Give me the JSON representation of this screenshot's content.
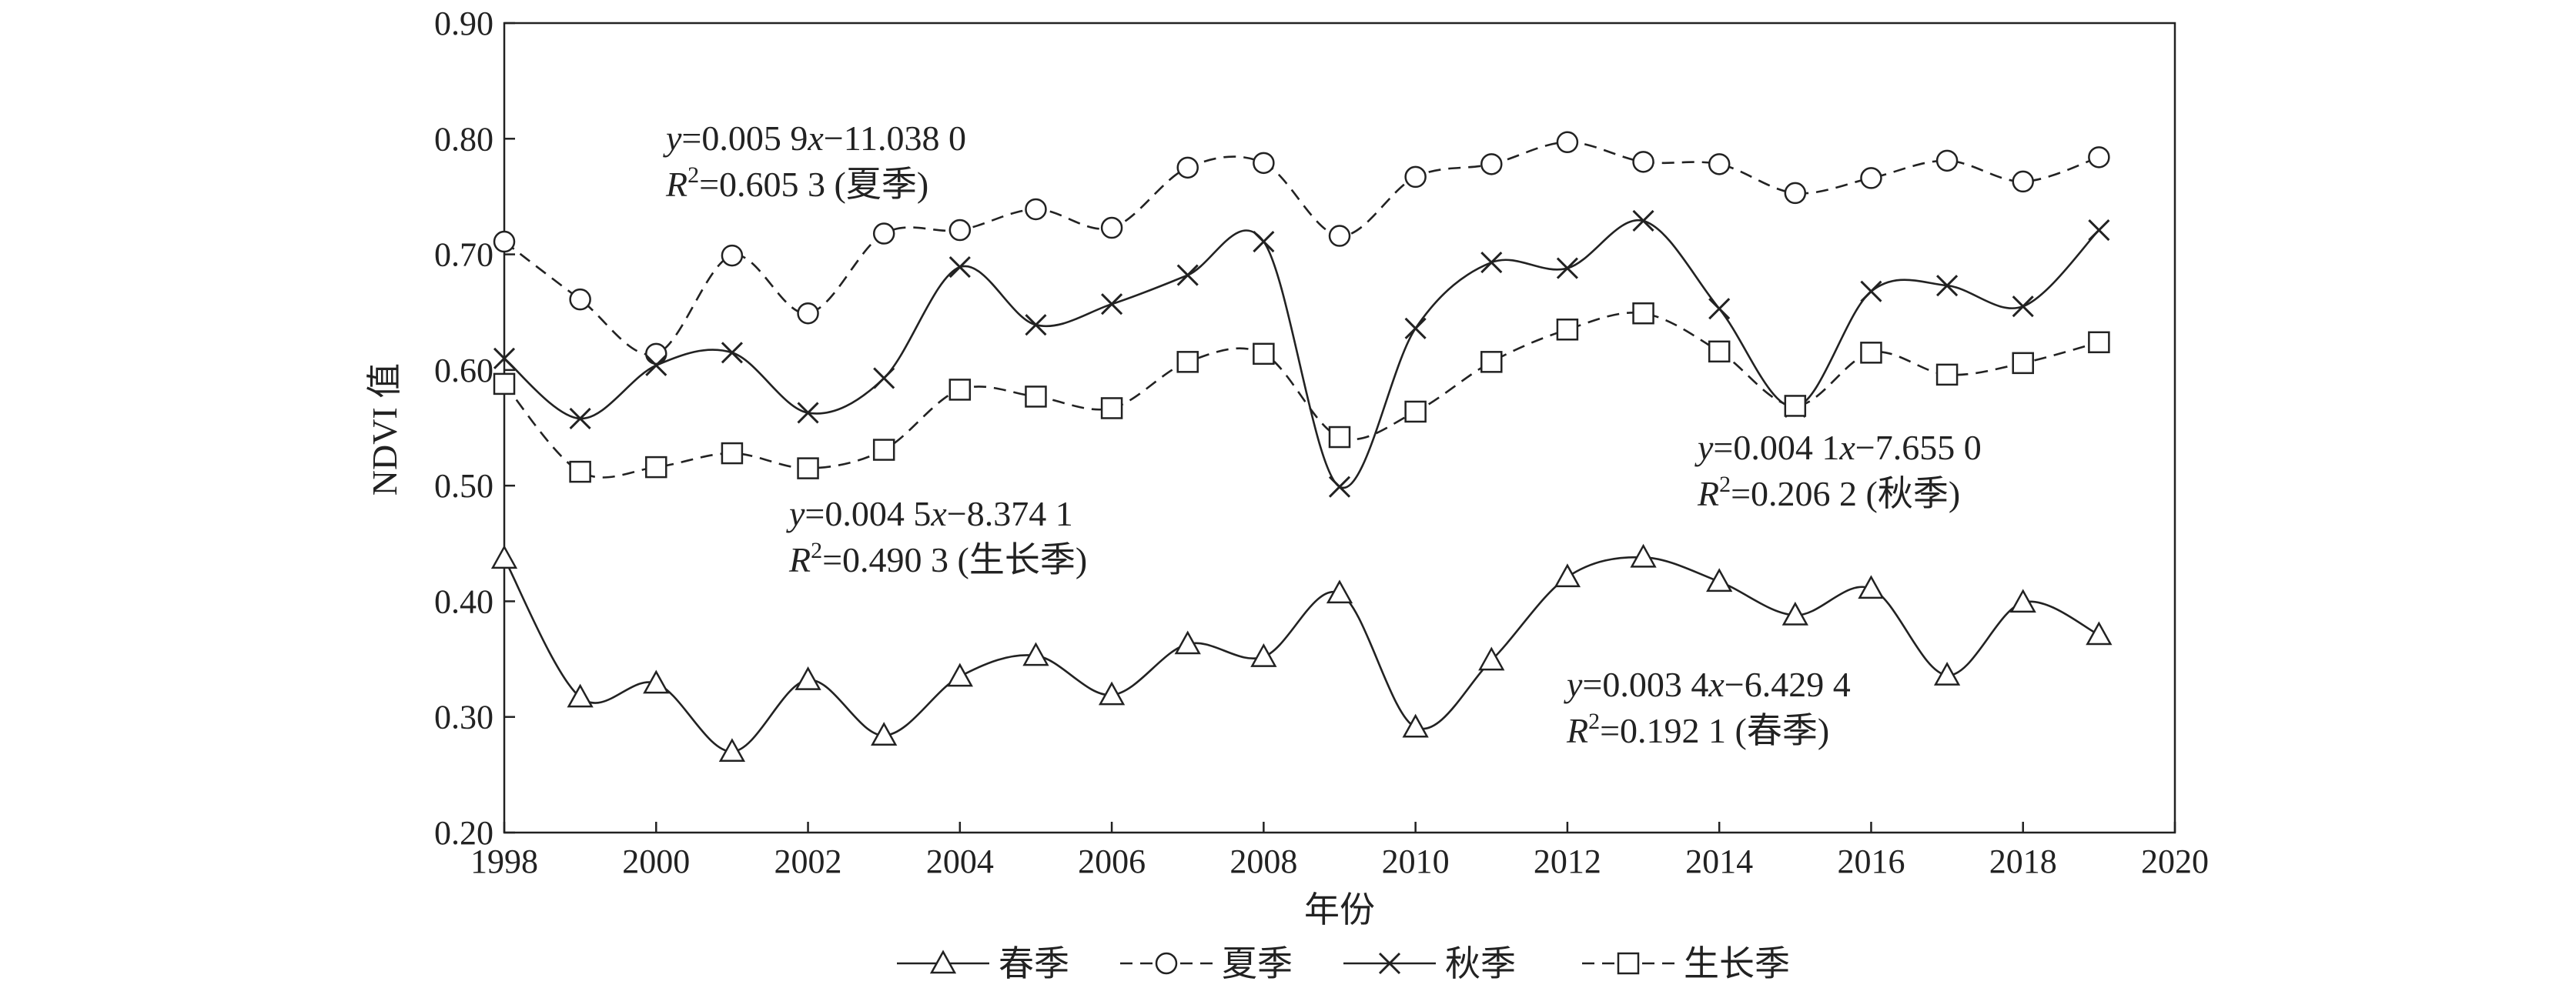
{
  "chart_data": {
    "type": "line",
    "xlabel": "年份",
    "ylabel": "NDVI 值",
    "xlim": [
      1998,
      2020
    ],
    "ylim": [
      0.2,
      0.9
    ],
    "xticks": [
      1998,
      2000,
      2002,
      2004,
      2006,
      2008,
      2010,
      2012,
      2014,
      2016,
      2018,
      2020
    ],
    "xtick_labels": [
      "1998",
      "2000",
      "2002",
      "2004",
      "2006",
      "2008",
      "2010",
      "2012",
      "2014",
      "2016",
      "2018",
      "2020"
    ],
    "yticks": [
      0.2,
      0.3,
      0.4,
      0.5,
      0.6,
      0.7,
      0.8,
      0.9
    ],
    "ytick_labels": [
      "0.20",
      "0.30",
      "0.40",
      "0.50",
      "0.60",
      "0.70",
      "0.80",
      "0.90"
    ],
    "grid": false,
    "legend_position": "bottom",
    "x": [
      1998,
      1999,
      2000,
      2001,
      2002,
      2003,
      2004,
      2005,
      2006,
      2007,
      2008,
      2009,
      2010,
      2011,
      2012,
      2013,
      2014,
      2015,
      2016,
      2017,
      2018,
      2019
    ],
    "series": [
      {
        "key": "spring",
        "name": "春季",
        "marker": "triangle",
        "dash": "solid",
        "color": "#222222",
        "values": [
          0.437,
          0.317,
          0.329,
          0.27,
          0.332,
          0.284,
          0.335,
          0.353,
          0.319,
          0.363,
          0.352,
          0.407,
          0.291,
          0.349,
          0.421,
          0.438,
          0.417,
          0.388,
          0.411,
          0.336,
          0.399,
          0.371
        ]
      },
      {
        "key": "summer",
        "name": "夏季",
        "marker": "circle",
        "dash": "dashed",
        "color": "#222222",
        "values": [
          0.711,
          0.661,
          0.614,
          0.699,
          0.649,
          0.718,
          0.721,
          0.739,
          0.723,
          0.775,
          0.779,
          0.716,
          0.767,
          0.778,
          0.797,
          0.78,
          0.778,
          0.753,
          0.766,
          0.781,
          0.763,
          0.784
        ]
      },
      {
        "key": "autumn",
        "name": "秋季",
        "marker": "cross",
        "dash": "solid",
        "color": "#222222",
        "values": [
          0.61,
          0.558,
          0.604,
          0.615,
          0.563,
          0.593,
          0.689,
          0.639,
          0.657,
          0.682,
          0.711,
          0.499,
          0.636,
          0.693,
          0.688,
          0.729,
          0.653,
          0.568,
          0.668,
          0.673,
          0.655,
          0.721
        ]
      },
      {
        "key": "growing",
        "name": "生长季",
        "marker": "square",
        "dash": "dashed",
        "color": "#222222",
        "values": [
          0.588,
          0.512,
          0.516,
          0.528,
          0.515,
          0.531,
          0.583,
          0.577,
          0.567,
          0.607,
          0.614,
          0.542,
          0.564,
          0.607,
          0.635,
          0.649,
          0.616,
          0.569,
          0.615,
          0.596,
          0.606,
          0.624
        ]
      }
    ],
    "annotations": [
      {
        "key": "summer",
        "equation": {
          "y": "y",
          "rest": "=0.005 9",
          "x": "x",
          "tail": "−11.038 0"
        },
        "r2": {
          "r": "R",
          "sup": "2",
          "rest": "=0.605 3 (夏季)"
        }
      },
      {
        "key": "growing",
        "equation": {
          "y": "y",
          "rest": "=0.004 5",
          "x": "x",
          "tail": "−8.374 1"
        },
        "r2": {
          "r": "R",
          "sup": "2",
          "rest": "=0.490 3 (生长季)"
        }
      },
      {
        "key": "autumn",
        "equation": {
          "y": "y",
          "rest": "=0.004 1",
          "x": "x",
          "tail": "−7.655 0"
        },
        "r2": {
          "r": "R",
          "sup": "2",
          "rest": "=0.206 2 (秋季)"
        }
      },
      {
        "key": "spring",
        "equation": {
          "y": "y",
          "rest": "=0.003 4",
          "x": "x",
          "tail": "−6.429 4"
        },
        "r2": {
          "r": "R",
          "sup": "2",
          "rest": "=0.192 1 (春季)"
        }
      }
    ]
  }
}
